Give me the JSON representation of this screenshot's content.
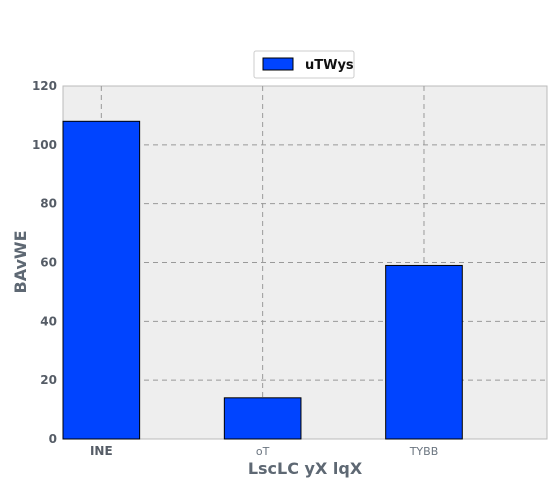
{
  "chart_data": {
    "type": "bar",
    "categories": [
      "INE",
      "oT",
      "TYBB"
    ],
    "series": [
      {
        "name": "uTWys",
        "values": [
          108,
          14,
          59
        ],
        "color": "#0044ff"
      }
    ],
    "xlabel": "LscLC yX lqX",
    "ylabel": "BAvWE",
    "ylim": [
      0,
      120
    ],
    "yticks": [
      0,
      20,
      40,
      60,
      80,
      100,
      120
    ],
    "grid": true,
    "legend": "top-center",
    "plot_background": "#eeeeee"
  }
}
